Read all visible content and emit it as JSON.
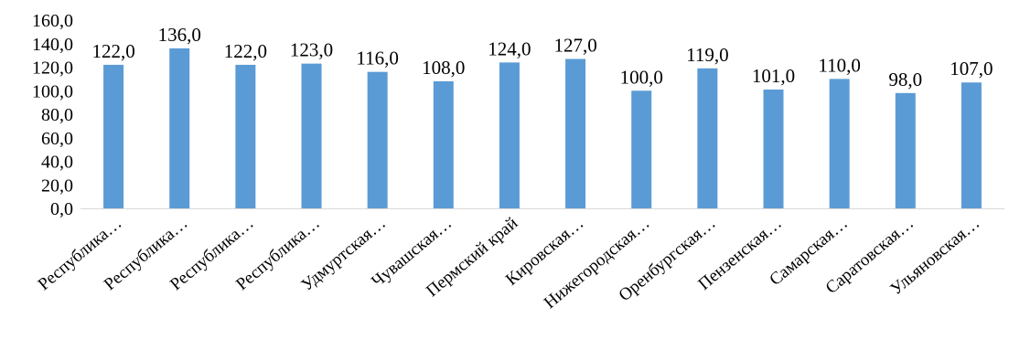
{
  "chart_data": {
    "type": "bar",
    "categories": [
      "Республика…",
      "Республика…",
      "Республика…",
      "Республика…",
      "Удмуртская…",
      "Чувашская…",
      "Пермский край",
      "Кировская…",
      "Нижегородская…",
      "Оренбургская…",
      "Пензенская…",
      "Самарская…",
      "Саратовская…",
      "Ульяновская…"
    ],
    "values": [
      122.0,
      136.0,
      122.0,
      123.0,
      116.0,
      108.0,
      124.0,
      127.0,
      100.0,
      119.0,
      101.0,
      110.0,
      98.0,
      107.0
    ],
    "data_labels": [
      "122,0",
      "136,0",
      "122,0",
      "123,0",
      "116,0",
      "108,0",
      "124,0",
      "127,0",
      "100,0",
      "119,0",
      "101,0",
      "110,0",
      "98,0",
      "107,0"
    ],
    "y_ticks": [
      0,
      20,
      40,
      60,
      80,
      100,
      120,
      140,
      160
    ],
    "y_tick_labels": [
      "0,0",
      "20,0",
      "40,0",
      "60,0",
      "80,0",
      "100,0",
      "120,0",
      "140,0",
      "160,0"
    ],
    "ylim": [
      0,
      160
    ],
    "title": "",
    "xlabel": "",
    "ylabel": "",
    "grid": false,
    "legend": "none",
    "bar_color": "#5b9bd5"
  }
}
